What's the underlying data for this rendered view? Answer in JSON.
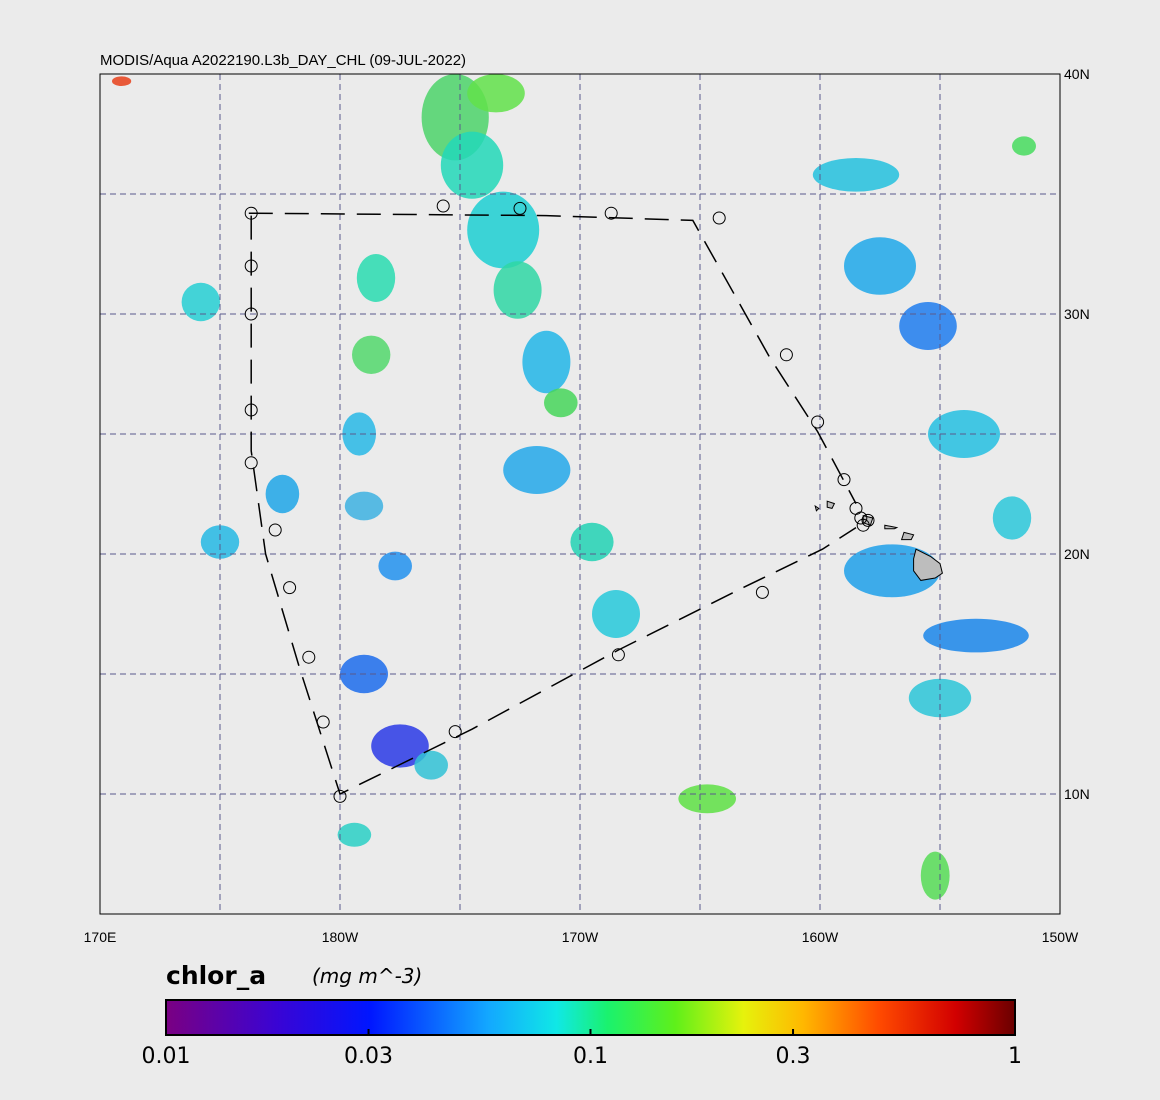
{
  "title": "MODIS/Aqua A2022190.L3b_DAY_CHL (09-JUL-2022)",
  "map": {
    "lon_range": [
      170,
      210
    ],
    "lat_range": [
      5,
      40
    ],
    "gridline_lons": [
      175,
      180,
      185,
      190,
      195,
      200,
      205
    ],
    "gridline_lats": [
      10,
      15,
      20,
      25,
      30,
      35
    ],
    "lon_tick_labels": [
      {
        "lon": 170,
        "label": "170E"
      },
      {
        "lon": 180,
        "label": "180W"
      },
      {
        "lon": 190,
        "label": "170W"
      },
      {
        "lon": 200,
        "label": "160W"
      },
      {
        "lon": 210,
        "label": "150W"
      }
    ],
    "lat_tick_labels": [
      {
        "lat": 40,
        "label": "40N"
      },
      {
        "lat": 30,
        "label": "30N"
      },
      {
        "lat": 20,
        "label": "20N"
      },
      {
        "lat": 10,
        "label": "10N"
      }
    ],
    "colors": {
      "background": "#ebebeb",
      "land": "#bdbdbd",
      "gridline": "#5a5a8c",
      "track": "#000000"
    }
  },
  "track": {
    "line_segments": [
      [
        [
          176.2,
          34.2
        ],
        [
          188.6,
          34.1
        ],
        [
          194.7,
          33.9
        ],
        [
          197.9,
          28.2
        ],
        [
          199.9,
          25.1
        ],
        [
          201.5,
          22.1
        ]
      ],
      [
        [
          176.3,
          34.1
        ],
        [
          176.3,
          24.3
        ],
        [
          176.9,
          20.0
        ],
        [
          178.3,
          15.3
        ],
        [
          180.0,
          10.0
        ],
        [
          185.5,
          12.7
        ],
        [
          191.6,
          16.0
        ],
        [
          196.8,
          18.6
        ],
        [
          200.1,
          20.2
        ],
        [
          201.5,
          21.1
        ]
      ]
    ],
    "stations": [
      [
        176.3,
        34.2
      ],
      [
        184.3,
        34.5
      ],
      [
        187.5,
        34.4
      ],
      [
        191.3,
        34.2
      ],
      [
        195.8,
        34.0
      ],
      [
        176.3,
        32.0
      ],
      [
        176.3,
        30.0
      ],
      [
        176.3,
        26.0
      ],
      [
        176.3,
        23.8
      ],
      [
        177.3,
        21.0
      ],
      [
        177.9,
        18.6
      ],
      [
        178.7,
        15.7
      ],
      [
        179.3,
        13.0
      ],
      [
        180.0,
        9.9
      ],
      [
        184.8,
        12.6
      ],
      [
        191.6,
        15.8
      ],
      [
        197.6,
        18.4
      ],
      [
        198.6,
        28.3
      ],
      [
        199.9,
        25.5
      ],
      [
        201.0,
        23.1
      ],
      [
        201.5,
        21.9
      ],
      [
        201.7,
        21.5
      ],
      [
        202.0,
        21.4
      ],
      [
        201.8,
        21.2
      ]
    ]
  },
  "islands": [
    {
      "name": "Hawaii",
      "points": [
        [
          204.0,
          20.2
        ],
        [
          204.6,
          19.9
        ],
        [
          205.0,
          19.6
        ],
        [
          205.1,
          19.2
        ],
        [
          204.8,
          19.0
        ],
        [
          204.2,
          18.9
        ],
        [
          203.9,
          19.3
        ],
        [
          203.9,
          19.8
        ]
      ]
    },
    {
      "name": "Maui",
      "points": [
        [
          203.5,
          20.9
        ],
        [
          203.9,
          20.8
        ],
        [
          203.8,
          20.6
        ],
        [
          203.4,
          20.6
        ]
      ]
    },
    {
      "name": "Molokai",
      "points": [
        [
          202.7,
          21.2
        ],
        [
          203.2,
          21.1
        ],
        [
          203.1,
          21.05
        ],
        [
          202.7,
          21.05
        ]
      ]
    },
    {
      "name": "Oahu",
      "points": [
        [
          201.8,
          21.6
        ],
        [
          202.2,
          21.5
        ],
        [
          202.1,
          21.2
        ],
        [
          201.8,
          21.3
        ]
      ]
    },
    {
      "name": "Kauai",
      "points": [
        [
          200.3,
          22.2
        ],
        [
          200.6,
          22.1
        ],
        [
          200.5,
          21.9
        ],
        [
          200.3,
          21.95
        ]
      ]
    },
    {
      "name": "Niihau",
      "points": [
        [
          199.8,
          22.0
        ],
        [
          199.95,
          21.9
        ],
        [
          199.85,
          21.8
        ]
      ]
    }
  ],
  "chlorophyll_patches": [
    {
      "lon": 184.8,
      "lat": 38.2,
      "rx": 1.4,
      "ry": 1.8,
      "color": "#4cd46a"
    },
    {
      "lon": 186.5,
      "lat": 39.2,
      "rx": 1.2,
      "ry": 0.8,
      "color": "#62e24a"
    },
    {
      "lon": 185.5,
      "lat": 36.2,
      "rx": 1.3,
      "ry": 1.4,
      "color": "#22d8b8"
    },
    {
      "lon": 186.8,
      "lat": 33.5,
      "rx": 1.5,
      "ry": 1.6,
      "color": "#1ccfd2"
    },
    {
      "lon": 187.4,
      "lat": 31.0,
      "rx": 1.0,
      "ry": 1.2,
      "color": "#2fd7a4"
    },
    {
      "lon": 188.6,
      "lat": 28.0,
      "rx": 1.0,
      "ry": 1.3,
      "color": "#22b6e8"
    },
    {
      "lon": 189.2,
      "lat": 26.3,
      "rx": 0.7,
      "ry": 0.6,
      "color": "#47d65a"
    },
    {
      "lon": 188.2,
      "lat": 23.5,
      "rx": 1.4,
      "ry": 1.0,
      "color": "#23a8ea"
    },
    {
      "lon": 190.5,
      "lat": 20.5,
      "rx": 0.9,
      "ry": 0.8,
      "color": "#22d2b4"
    },
    {
      "lon": 191.5,
      "lat": 17.5,
      "rx": 1.0,
      "ry": 1.0,
      "color": "#26c9da"
    },
    {
      "lon": 181.5,
      "lat": 31.5,
      "rx": 0.8,
      "ry": 1.0,
      "color": "#29dcb0"
    },
    {
      "lon": 181.3,
      "lat": 28.3,
      "rx": 0.8,
      "ry": 0.8,
      "color": "#52d86c"
    },
    {
      "lon": 180.8,
      "lat": 25.0,
      "rx": 0.7,
      "ry": 0.9,
      "color": "#28b9e6"
    },
    {
      "lon": 181.0,
      "lat": 22.0,
      "rx": 0.8,
      "ry": 0.6,
      "color": "#3db2e2"
    },
    {
      "lon": 182.3,
      "lat": 19.5,
      "rx": 0.7,
      "ry": 0.6,
      "color": "#2292ee"
    },
    {
      "lon": 174.2,
      "lat": 30.5,
      "rx": 0.8,
      "ry": 0.8,
      "color": "#26cfd4"
    },
    {
      "lon": 177.6,
      "lat": 22.5,
      "rx": 0.7,
      "ry": 0.8,
      "color": "#1fa6e8"
    },
    {
      "lon": 181.0,
      "lat": 15.0,
      "rx": 1.0,
      "ry": 0.8,
      "color": "#1c6cec"
    },
    {
      "lon": 182.5,
      "lat": 12.0,
      "rx": 1.2,
      "ry": 0.9,
      "color": "#2a3ae6"
    },
    {
      "lon": 183.8,
      "lat": 11.2,
      "rx": 0.7,
      "ry": 0.6,
      "color": "#31c2d6"
    },
    {
      "lon": 180.6,
      "lat": 8.3,
      "rx": 0.7,
      "ry": 0.5,
      "color": "#2ad0c6"
    },
    {
      "lon": 202.5,
      "lat": 32.0,
      "rx": 1.5,
      "ry": 1.2,
      "color": "#1ea8ea"
    },
    {
      "lon": 201.5,
      "lat": 35.8,
      "rx": 1.8,
      "ry": 0.7,
      "color": "#23c1de"
    },
    {
      "lon": 204.5,
      "lat": 29.5,
      "rx": 1.2,
      "ry": 1.0,
      "color": "#1f7cee"
    },
    {
      "lon": 206.0,
      "lat": 25.0,
      "rx": 1.5,
      "ry": 1.0,
      "color": "#24bfe2"
    },
    {
      "lon": 203.0,
      "lat": 19.3,
      "rx": 2.0,
      "ry": 1.1,
      "color": "#1fa0ea"
    },
    {
      "lon": 206.5,
      "lat": 16.6,
      "rx": 2.2,
      "ry": 0.7,
      "color": "#1a86ea"
    },
    {
      "lon": 205.0,
      "lat": 14.0,
      "rx": 1.3,
      "ry": 0.8,
      "color": "#2bc5d8"
    },
    {
      "lon": 208.5,
      "lat": 37.0,
      "rx": 0.5,
      "ry": 0.4,
      "color": "#47dc5e"
    },
    {
      "lon": 195.3,
      "lat": 9.8,
      "rx": 1.2,
      "ry": 0.6,
      "color": "#5ee044"
    },
    {
      "lon": 204.8,
      "lat": 6.6,
      "rx": 0.6,
      "ry": 1.0,
      "color": "#56dc56"
    },
    {
      "lon": 175.0,
      "lat": 20.5,
      "rx": 0.8,
      "ry": 0.7,
      "color": "#24b8e4"
    },
    {
      "lon": 208.0,
      "lat": 21.5,
      "rx": 0.8,
      "ry": 0.9,
      "color": "#2bc8da"
    },
    {
      "lon": 170.9,
      "lat": 39.7,
      "rx": 0.4,
      "ry": 0.2,
      "color": "#e8401a"
    }
  ],
  "colorbar": {
    "variable": "chlor_a",
    "units": "(mg m^-3)",
    "scale": "log",
    "range": [
      0.01,
      1
    ],
    "ticks": [
      {
        "value": 0.01,
        "label": "0.01"
      },
      {
        "value": 0.03,
        "label": "0.03"
      },
      {
        "value": 0.1,
        "label": "0.1"
      },
      {
        "value": 0.3,
        "label": "0.3"
      },
      {
        "value": 1,
        "label": "1"
      }
    ],
    "gradient_stops": [
      {
        "pos": 0.0,
        "color": "#7a0082"
      },
      {
        "pos": 0.13,
        "color": "#3a04d4"
      },
      {
        "pos": 0.24,
        "color": "#0016ff"
      },
      {
        "pos": 0.38,
        "color": "#13a8ff"
      },
      {
        "pos": 0.46,
        "color": "#10e8e6"
      },
      {
        "pos": 0.52,
        "color": "#1af26e"
      },
      {
        "pos": 0.6,
        "color": "#5ff01a"
      },
      {
        "pos": 0.68,
        "color": "#e6f20c"
      },
      {
        "pos": 0.75,
        "color": "#ffb800"
      },
      {
        "pos": 0.84,
        "color": "#ff4a00"
      },
      {
        "pos": 0.93,
        "color": "#d20000"
      },
      {
        "pos": 1.0,
        "color": "#6a0000"
      }
    ]
  }
}
